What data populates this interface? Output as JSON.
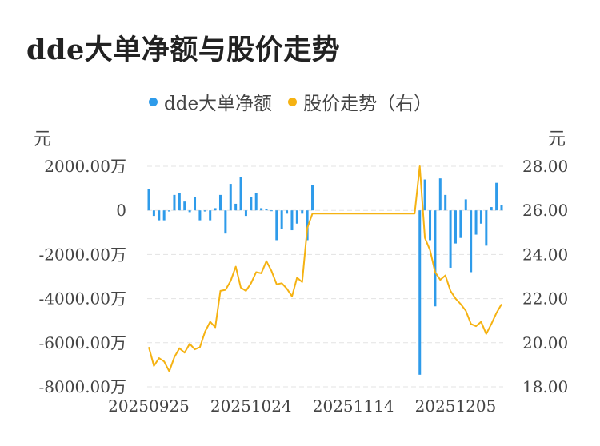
{
  "title": "dde大单净额与股价走势",
  "legend": [
    {
      "label": "dde大单净额",
      "color": "#2E9BEA"
    },
    {
      "label": "股价走势（右）",
      "color": "#F5B212"
    }
  ],
  "left_unit": "元",
  "right_unit": "元",
  "chart_data": {
    "type": "bar+line",
    "y_left": {
      "ticks": [
        2000,
        0,
        -2000,
        -4000,
        -6000,
        -8000
      ],
      "labels": [
        "2000.00万",
        "0",
        "-2000.00万",
        "-4000.00万",
        "-6000.00万",
        "-8000.00万"
      ],
      "range": [
        -8000,
        2000
      ]
    },
    "y_right": {
      "ticks": [
        28,
        26,
        24,
        22,
        20,
        18
      ],
      "labels": [
        "28.00",
        "26.00",
        "24.00",
        "22.00",
        "20.00",
        "18.00"
      ],
      "range": [
        18,
        28
      ]
    },
    "x_tick_labels": [
      {
        "label": "20250925",
        "index": 0
      },
      {
        "label": "20251024",
        "index": 20
      },
      {
        "label": "20251114",
        "index": 40
      },
      {
        "label": "20251205",
        "index": 60
      }
    ],
    "bars": [
      950,
      -250,
      -450,
      -450,
      -50,
      700,
      800,
      400,
      -80,
      600,
      -450,
      -50,
      -450,
      100,
      700,
      -1050,
      1200,
      300,
      1500,
      -250,
      600,
      800,
      100,
      50,
      0,
      -1350,
      -850,
      -150,
      -900,
      -600,
      -150,
      -1350,
      1150,
      null,
      null,
      null,
      null,
      null,
      null,
      null,
      null,
      null,
      null,
      null,
      null,
      null,
      null,
      null,
      null,
      null,
      null,
      null,
      null,
      -7450,
      1400,
      -1350,
      -4350,
      1450,
      700,
      -2600,
      -1500,
      -1250,
      500,
      -2800,
      -1100,
      -600,
      -1600,
      150,
      1250,
      250
    ],
    "price": [
      19.8,
      18.95,
      19.3,
      19.15,
      18.7,
      19.35,
      19.75,
      19.55,
      19.95,
      19.7,
      19.8,
      20.5,
      20.95,
      20.7,
      22.35,
      22.4,
      22.8,
      23.45,
      22.5,
      22.35,
      22.7,
      23.2,
      23.15,
      23.7,
      23.25,
      22.65,
      22.7,
      22.45,
      22.1,
      22.95,
      22.75,
      25.2,
      25.85,
      25.85,
      25.85,
      25.85,
      25.85,
      25.85,
      25.85,
      25.85,
      25.85,
      25.85,
      25.85,
      25.85,
      25.85,
      25.85,
      25.85,
      25.85,
      25.85,
      25.85,
      25.85,
      25.85,
      25.85,
      28.0,
      24.75,
      24.2,
      23.2,
      22.85,
      23.05,
      22.35,
      22.0,
      21.75,
      21.45,
      20.85,
      20.75,
      20.95,
      20.4,
      20.85,
      21.35,
      21.75
    ]
  }
}
